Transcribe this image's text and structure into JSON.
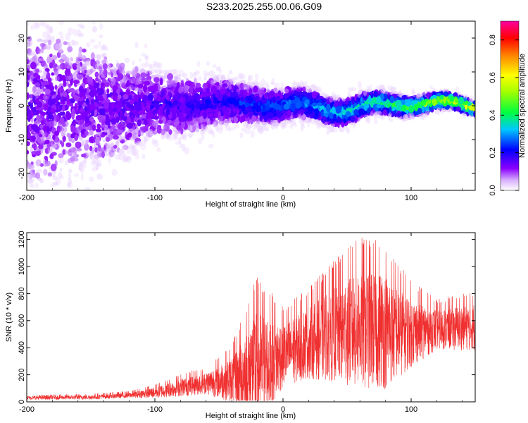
{
  "title": "S233.2025.255.00.06.G09",
  "chart_data": [
    {
      "type": "heatmap",
      "xlabel": "Height of straight line (km)",
      "ylabel": "Frequency (Hz)",
      "xlim": [
        -200,
        150
      ],
      "ylim": [
        -25,
        25
      ],
      "xticks": [
        -200,
        -100,
        0,
        100
      ],
      "yticks": [
        -20,
        -10,
        0,
        10,
        20
      ],
      "colorbar": {
        "label": "Normalized spectral amplitude",
        "range": [
          0.0,
          0.9
        ],
        "ticks": [
          "0.0",
          "0.2",
          "0.4",
          "0.6",
          "0.8"
        ],
        "colors": [
          "#ffffff",
          "#8a00ff",
          "#0000ff",
          "#00c8ff",
          "#00ff40",
          "#a0ff00",
          "#ffff00",
          "#ff8000",
          "#ff0000",
          "#ff00a0"
        ]
      },
      "ridge": {
        "description_values": [
          {
            "x": -200,
            "center": 0,
            "spread": 25
          },
          {
            "x": -150,
            "center": 0,
            "spread": 18
          },
          {
            "x": -100,
            "center": 0,
            "spread": 10
          },
          {
            "x": -50,
            "center": 1,
            "spread": 7
          },
          {
            "x": 0,
            "center": 0,
            "spread": 5
          },
          {
            "x": 50,
            "center": -1,
            "spread": 4
          },
          {
            "x": 100,
            "center": 1,
            "spread": 3
          },
          {
            "x": 150,
            "center": 0,
            "spread": 2
          }
        ]
      }
    },
    {
      "type": "line",
      "xlabel": "Height of straight line (km)",
      "ylabel": "SNR (10 * v/v)",
      "xlim": [
        -200,
        150
      ],
      "ylim": [
        0,
        1250
      ],
      "xticks": [
        -200,
        -100,
        0,
        100
      ],
      "yticks": [
        0,
        200,
        400,
        600,
        800,
        1000,
        1200
      ],
      "color": "#f03030",
      "envelope": [
        {
          "x": -200,
          "mean": 30,
          "peak": 50
        },
        {
          "x": -150,
          "mean": 35,
          "peak": 60
        },
        {
          "x": -120,
          "mean": 50,
          "peak": 80
        },
        {
          "x": -100,
          "mean": 70,
          "peak": 130
        },
        {
          "x": -80,
          "mean": 110,
          "peak": 210
        },
        {
          "x": -60,
          "mean": 140,
          "peak": 260
        },
        {
          "x": -40,
          "mean": 170,
          "peak": 420
        },
        {
          "x": -20,
          "mean": 250,
          "peak": 950
        },
        {
          "x": 0,
          "mean": 350,
          "peak": 700
        },
        {
          "x": 20,
          "mean": 450,
          "peak": 850
        },
        {
          "x": 40,
          "mean": 520,
          "peak": 1050
        },
        {
          "x": 60,
          "mean": 560,
          "peak": 1230
        },
        {
          "x": 80,
          "mean": 540,
          "peak": 1180
        },
        {
          "x": 100,
          "mean": 520,
          "peak": 900
        },
        {
          "x": 120,
          "mean": 540,
          "peak": 760
        },
        {
          "x": 150,
          "mean": 560,
          "peak": 820
        }
      ]
    }
  ]
}
